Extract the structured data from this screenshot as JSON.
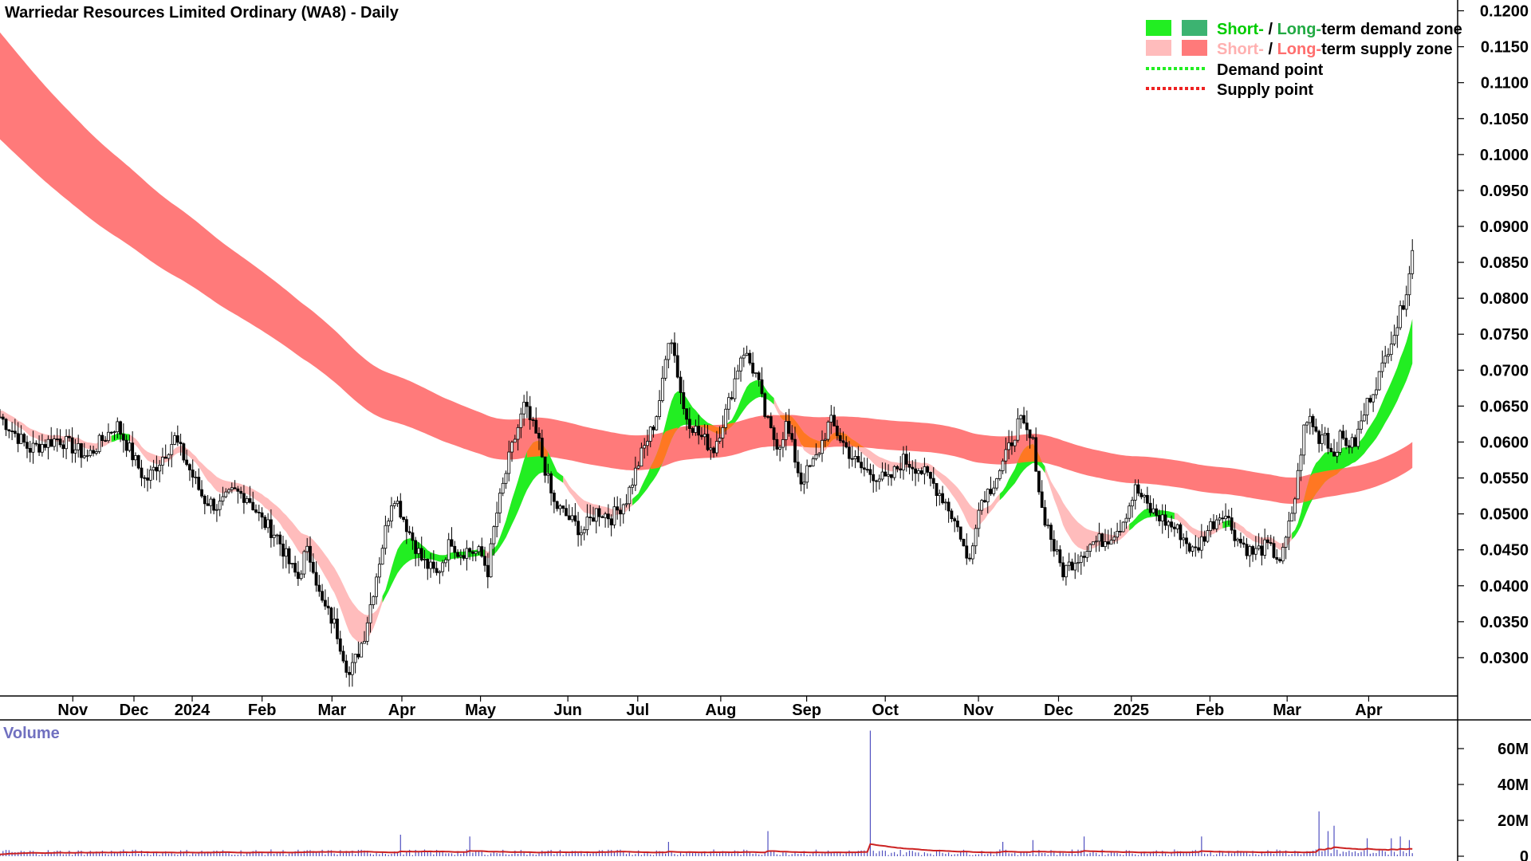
{
  "chart_data": {
    "type": "candlestick",
    "title": "Warriedar Resources Limited Ordinary (WA8) - Daily",
    "price_axis": {
      "ylim": [
        0.025,
        0.1215
      ],
      "ticks": [
        "0.0300",
        "0.0350",
        "0.0400",
        "0.0450",
        "0.0500",
        "0.0550",
        "0.0600",
        "0.0650",
        "0.0700",
        "0.0750",
        "0.0800",
        "0.0850",
        "0.0900",
        "0.0950",
        "0.1000",
        "0.1050",
        "0.1100",
        "0.1150",
        "0.1200"
      ],
      "tick_values": [
        0.03,
        0.035,
        0.04,
        0.045,
        0.05,
        0.055,
        0.06,
        0.065,
        0.07,
        0.075,
        0.08,
        0.085,
        0.09,
        0.095,
        0.1,
        0.105,
        0.11,
        0.115,
        0.12
      ]
    },
    "time_axis": {
      "labels": [
        "Nov",
        "Dec",
        "2024",
        "Feb",
        "Mar",
        "Apr",
        "May",
        "Jun",
        "Jul",
        "Aug",
        "Sep",
        "Oct",
        "Nov",
        "Dec",
        "2025",
        "Feb",
        "Mar",
        "Apr"
      ],
      "label_pos": [
        0.05,
        0.092,
        0.132,
        0.18,
        0.228,
        0.276,
        0.33,
        0.39,
        0.438,
        0.495,
        0.554,
        0.608,
        0.672,
        0.727,
        0.777,
        0.831,
        0.884,
        0.94
      ]
    },
    "price_path": {
      "x": [
        0,
        0.02,
        0.04,
        0.06,
        0.08,
        0.1,
        0.12,
        0.14,
        0.15,
        0.16,
        0.17,
        0.18,
        0.19,
        0.2,
        0.205,
        0.21,
        0.215,
        0.22,
        0.23,
        0.24,
        0.25,
        0.26,
        0.27,
        0.28,
        0.29,
        0.3,
        0.31,
        0.315,
        0.32,
        0.33,
        0.335,
        0.34,
        0.35,
        0.36,
        0.37,
        0.38,
        0.39,
        0.4,
        0.41,
        0.42,
        0.43,
        0.44,
        0.45,
        0.455,
        0.46,
        0.465,
        0.47,
        0.48,
        0.49,
        0.5,
        0.51,
        0.52,
        0.525,
        0.53,
        0.535,
        0.54,
        0.545,
        0.55,
        0.56,
        0.57,
        0.58,
        0.59,
        0.6,
        0.61,
        0.62,
        0.63,
        0.64,
        0.65,
        0.66,
        0.665,
        0.67,
        0.675,
        0.68,
        0.69,
        0.7,
        0.71,
        0.715,
        0.72,
        0.725,
        0.73,
        0.74,
        0.75,
        0.76,
        0.77,
        0.78,
        0.79,
        0.8,
        0.81,
        0.82,
        0.83,
        0.84,
        0.85,
        0.86,
        0.87,
        0.88,
        0.885,
        0.89,
        0.895,
        0.9,
        0.905,
        0.91,
        0.915,
        0.92,
        0.93,
        0.94,
        0.95,
        0.955,
        0.96,
        0.965,
        0.97
      ],
      "close": [
        0.0635,
        0.059,
        0.0605,
        0.058,
        0.0625,
        0.0545,
        0.0605,
        0.052,
        0.051,
        0.053,
        0.0525,
        0.049,
        0.047,
        0.0425,
        0.041,
        0.045,
        0.043,
        0.038,
        0.0345,
        0.0275,
        0.033,
        0.043,
        0.053,
        0.048,
        0.0435,
        0.0415,
        0.0465,
        0.0445,
        0.045,
        0.0445,
        0.042,
        0.049,
        0.058,
        0.065,
        0.06,
        0.0515,
        0.0495,
        0.0475,
        0.0505,
        0.0495,
        0.052,
        0.058,
        0.063,
        0.068,
        0.076,
        0.07,
        0.064,
        0.061,
        0.059,
        0.065,
        0.073,
        0.069,
        0.064,
        0.061,
        0.0595,
        0.0625,
        0.0585,
        0.0545,
        0.0575,
        0.063,
        0.0595,
        0.0565,
        0.0555,
        0.0545,
        0.0575,
        0.0565,
        0.0545,
        0.0515,
        0.047,
        0.0425,
        0.049,
        0.0525,
        0.0535,
        0.0575,
        0.063,
        0.0595,
        0.051,
        0.048,
        0.0445,
        0.042,
        0.044,
        0.046,
        0.0465,
        0.0485,
        0.0535,
        0.0505,
        0.049,
        0.0475,
        0.0445,
        0.048,
        0.0505,
        0.0465,
        0.0445,
        0.0455,
        0.0435,
        0.048,
        0.053,
        0.0615,
        0.0635,
        0.0605,
        0.0615,
        0.058,
        0.0605,
        0.0595,
        0.066,
        0.0705,
        0.0745,
        0.0765,
        0.0805,
        0.0865
      ]
    },
    "zones": {
      "long_supply_upper_start": 0.1175,
      "long_supply_lower_start": 0.1025,
      "short_supply_upper_start": 0.0754,
      "short_supply_lower_start": 0.0707
    },
    "volume_axis": {
      "ylim": [
        0,
        72000000
      ],
      "ticks": [
        "60M",
        "40M",
        "20M",
        "0"
      ],
      "tick_values": [
        60000000,
        40000000,
        20000000,
        0
      ]
    },
    "volume_spikes": [
      {
        "x": 0.275,
        "v": 12000000
      },
      {
        "x": 0.323,
        "v": 11000000
      },
      {
        "x": 0.46,
        "v": 8000000
      },
      {
        "x": 0.528,
        "v": 14000000
      },
      {
        "x": 0.598,
        "v": 70000000
      },
      {
        "x": 0.688,
        "v": 8000000
      },
      {
        "x": 0.71,
        "v": 9000000
      },
      {
        "x": 0.745,
        "v": 11000000
      },
      {
        "x": 0.825,
        "v": 11000000
      },
      {
        "x": 0.905,
        "v": 25000000
      },
      {
        "x": 0.912,
        "v": 14000000
      },
      {
        "x": 0.917,
        "v": 17000000
      },
      {
        "x": 0.94,
        "v": 10000000
      },
      {
        "x": 0.955,
        "v": 10000000
      },
      {
        "x": 0.962,
        "v": 11000000
      },
      {
        "x": 0.967,
        "v": 9000000
      }
    ],
    "volume_label": "Volume",
    "legend": [
      {
        "kind": "zone",
        "short_label": "Short-",
        "slash": " / ",
        "long_label": "Long-",
        "rest": "term demand zone",
        "short_color": "#22ee22",
        "long_color": "#3cb371",
        "short_text_color": "#00cc00",
        "long_text_color": "#22aa44"
      },
      {
        "kind": "zone",
        "short_label": "Short-",
        "slash": " / ",
        "long_label": "Long-",
        "rest": "term supply zone",
        "short_color": "#ffbcbc",
        "long_color": "#ff7a7a",
        "short_text_color": "#ffb0b0",
        "long_text_color": "#ff6e6e"
      },
      {
        "kind": "dot",
        "label": "Demand point",
        "color": "#22ee22"
      },
      {
        "kind": "dot",
        "label": "Supply point",
        "color": "#ee2222"
      }
    ],
    "colors": {
      "long_supply": "#ff7a7a",
      "short_supply": "#ffbcbc",
      "overlap": "#ff7722",
      "demand": "#22ee22",
      "candle": "#000000",
      "volume_bar": "#5050c0",
      "volume_ma": "#cc2222"
    }
  }
}
